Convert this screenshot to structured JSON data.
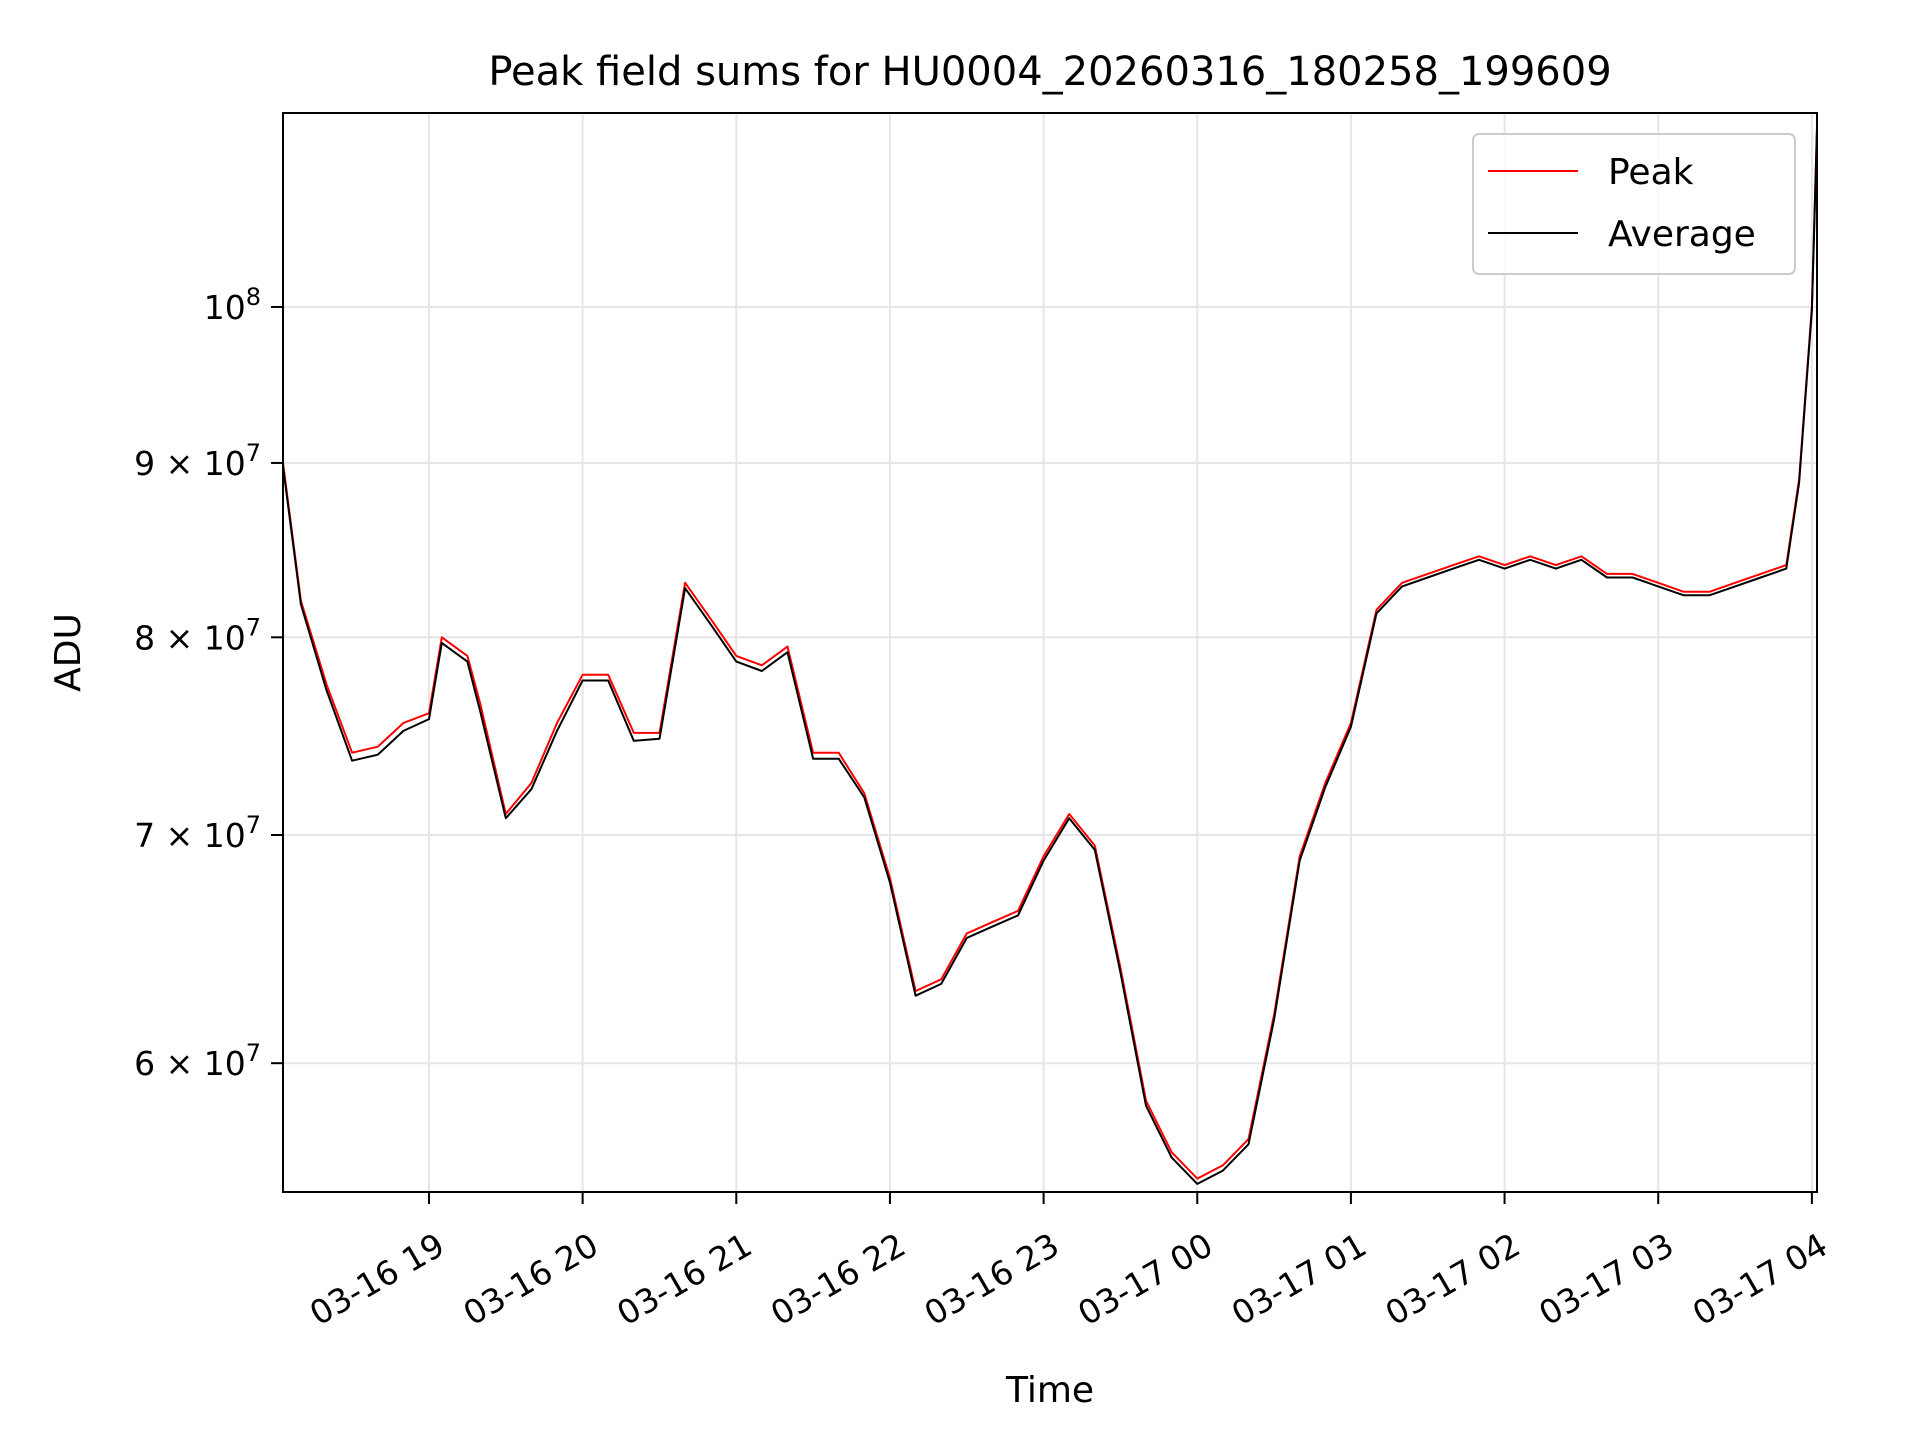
{
  "chart_data": {
    "type": "line",
    "title": "Peak field sums for HU0004_20260316_180258_199609",
    "xlabel": "Time",
    "ylabel": "ADU",
    "y_scale": "log",
    "ylim": [
      55000000,
      114000000
    ],
    "xlim": [
      "03-16 18:03",
      "03-17 04:02"
    ],
    "grid": true,
    "legend_position": "top-right",
    "x_ticks": [
      "03-16 19",
      "03-16 20",
      "03-16 21",
      "03-16 22",
      "03-16 23",
      "03-17 00",
      "03-17 01",
      "03-17 02",
      "03-17 03",
      "03-17 04"
    ],
    "y_ticks": [
      {
        "value": 60000000,
        "label": "6 × 10",
        "exp": "7"
      },
      {
        "value": 70000000,
        "label": "7 × 10",
        "exp": "7"
      },
      {
        "value": 80000000,
        "label": "8 × 10",
        "exp": "7"
      },
      {
        "value": 90000000,
        "label": "9 × 10",
        "exp": "7"
      },
      {
        "value": 100000000,
        "label": "10",
        "exp": "8"
      }
    ],
    "x": [
      "03-16 18:03",
      "03-16 18:10",
      "03-16 18:20",
      "03-16 18:30",
      "03-16 18:40",
      "03-16 18:50",
      "03-16 19:00",
      "03-16 19:05",
      "03-16 19:15",
      "03-16 19:20",
      "03-16 19:30",
      "03-16 19:40",
      "03-16 19:50",
      "03-16 20:00",
      "03-16 20:10",
      "03-16 20:20",
      "03-16 20:30",
      "03-16 20:40",
      "03-16 20:50",
      "03-16 21:00",
      "03-16 21:10",
      "03-16 21:20",
      "03-16 21:30",
      "03-16 21:40",
      "03-16 21:50",
      "03-16 22:00",
      "03-16 22:10",
      "03-16 22:20",
      "03-16 22:30",
      "03-16 22:40",
      "03-16 22:50",
      "03-16 23:00",
      "03-16 23:10",
      "03-16 23:20",
      "03-16 23:30",
      "03-16 23:40",
      "03-16 23:50",
      "03-17 00:00",
      "03-17 00:10",
      "03-17 00:20",
      "03-17 00:30",
      "03-17 00:40",
      "03-17 00:50",
      "03-17 01:00",
      "03-17 01:10",
      "03-17 01:20",
      "03-17 01:30",
      "03-17 01:40",
      "03-17 01:50",
      "03-17 02:00",
      "03-17 02:10",
      "03-17 02:20",
      "03-17 02:30",
      "03-17 02:40",
      "03-17 02:50",
      "03-17 03:00",
      "03-17 03:10",
      "03-17 03:20",
      "03-17 03:30",
      "03-17 03:40",
      "03-17 03:50",
      "03-17 03:55",
      "03-17 04:00",
      "03-17 04:02"
    ],
    "series": [
      {
        "name": "Peak",
        "color": "#ff0000",
        "values": [
          90000000,
          82000000,
          77500000,
          74000000,
          74300000,
          75500000,
          76000000,
          80000000,
          79000000,
          76500000,
          71000000,
          72500000,
          75500000,
          78000000,
          78000000,
          75000000,
          75000000,
          83000000,
          81000000,
          79000000,
          78500000,
          79500000,
          74000000,
          74000000,
          72000000,
          68000000,
          63000000,
          63500000,
          65500000,
          66000000,
          66500000,
          69000000,
          71000000,
          69500000,
          64000000,
          58500000,
          56500000,
          55500000,
          56000000,
          57000000,
          62000000,
          69000000,
          72500000,
          75500000,
          81500000,
          83000000,
          83500000,
          84000000,
          84500000,
          84000000,
          84500000,
          84000000,
          84500000,
          83500000,
          83500000,
          83000000,
          82500000,
          82500000,
          83000000,
          83500000,
          84000000,
          89000000,
          100000000,
          113000000
        ]
      },
      {
        "name": "Average",
        "color": "#000000",
        "values": [
          89800000,
          81800000,
          77200000,
          73600000,
          73900000,
          75100000,
          75700000,
          79700000,
          78700000,
          76100000,
          70800000,
          72200000,
          75100000,
          77700000,
          77700000,
          74600000,
          74700000,
          82700000,
          80700000,
          78700000,
          78200000,
          79200000,
          73700000,
          73700000,
          71800000,
          67800000,
          62800000,
          63300000,
          65300000,
          65800000,
          66300000,
          68800000,
          70800000,
          69300000,
          63800000,
          58300000,
          56300000,
          55300000,
          55800000,
          56800000,
          61800000,
          68800000,
          72300000,
          75300000,
          81300000,
          82800000,
          83300000,
          83800000,
          84300000,
          83800000,
          84300000,
          83800000,
          84300000,
          83300000,
          83300000,
          82800000,
          82300000,
          82300000,
          82800000,
          83300000,
          83800000,
          88800000,
          99800000,
          112800000
        ]
      }
    ]
  }
}
